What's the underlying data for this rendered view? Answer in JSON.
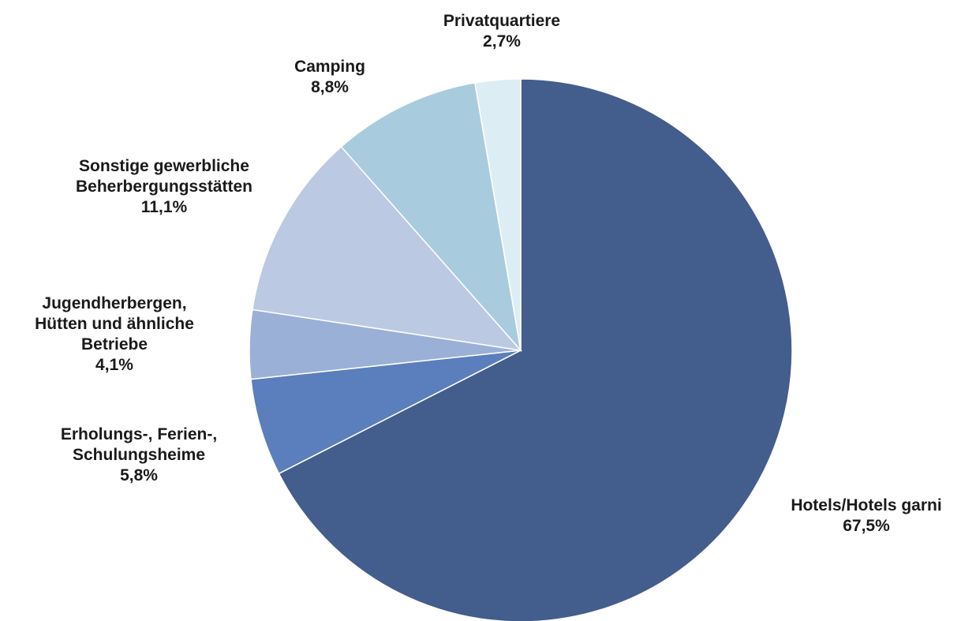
{
  "chart_data": {
    "type": "pie",
    "start_angle_deg": 0,
    "direction": "clockwise",
    "slices": [
      {
        "name": [
          "Hotels/Hotels garni"
        ],
        "value_label": "67,5%",
        "value": 67.5,
        "color": "#435D8C"
      },
      {
        "name": [
          "Erholungs-, Ferien-,",
          "Schulungsheime"
        ],
        "value_label": "5,8%",
        "value": 5.8,
        "color": "#5B7EBC"
      },
      {
        "name": [
          "Jugendherbergen,",
          "Hütten und ähnliche",
          "Betriebe"
        ],
        "value_label": "4,1%",
        "value": 4.1,
        "color": "#9BB0D6"
      },
      {
        "name": [
          "Sonstige gewerbliche",
          "Beherbergungsstätten"
        ],
        "value_label": "11,1%",
        "value": 11.1,
        "color": "#BCC9E3"
      },
      {
        "name": [
          "Camping"
        ],
        "value_label": "8,8%",
        "value": 8.8,
        "color": "#A8CCDD"
      },
      {
        "name": [
          "Privatquartiere"
        ],
        "value_label": "2,7%",
        "value": 2.7,
        "color": "#DDEDF4"
      }
    ]
  }
}
